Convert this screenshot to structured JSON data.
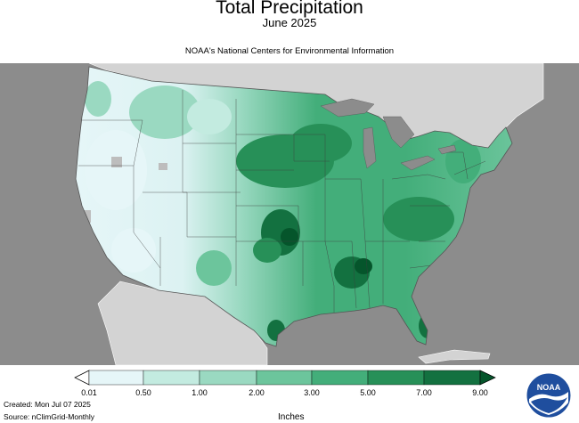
{
  "header": {
    "title": "Total Precipitation",
    "subtitle": "June 2025",
    "credit": "NOAA's National Centers for Environmental Information"
  },
  "legend": {
    "units": "Inches",
    "ticks": [
      "0.01",
      "0.50",
      "1.00",
      "2.00",
      "3.00",
      "5.00",
      "7.00",
      "9.00"
    ],
    "colors": [
      "#e6f6f8",
      "#c3ebe0",
      "#9ad9c1",
      "#6cc59c",
      "#43ae7a",
      "#279058",
      "#137140",
      "#05552b"
    ]
  },
  "footer": {
    "created": "Created: Mon Jul 07 2025",
    "source": "Source: nClimGrid-Monthly"
  },
  "logo": {
    "text": "NOAA",
    "icon": "noaa-logo-icon"
  },
  "map": {
    "background_color": "#8c8c8c",
    "neighbor_land_color": "#d3d3d3",
    "lakes_color": "#8c8c8c"
  }
}
